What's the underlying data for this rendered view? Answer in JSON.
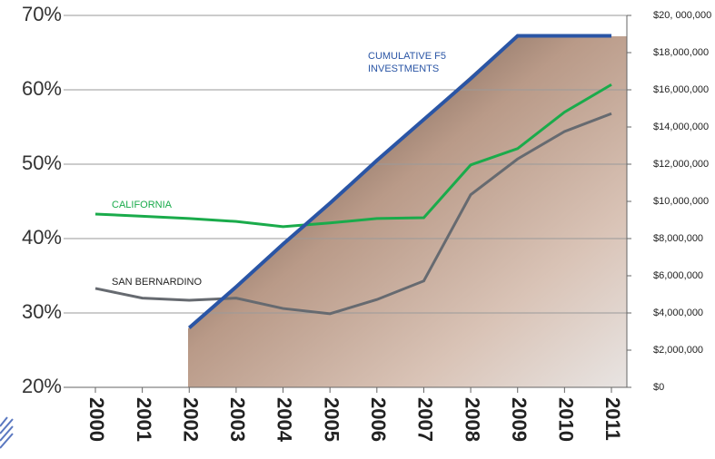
{
  "chart_data": {
    "type": "line",
    "categories": [
      "2000",
      "2001",
      "2002",
      "2003",
      "2004",
      "2005",
      "2006",
      "2007",
      "2008",
      "2009",
      "2010",
      "2011"
    ],
    "series": [
      {
        "name": "CALIFORNIA",
        "color": "#1aab4b",
        "values": [
          43.3,
          43.0,
          42.7,
          42.3,
          41.6,
          42.1,
          42.7,
          42.8,
          49.9,
          52.1,
          57.0,
          60.7
        ]
      },
      {
        "name": "SAN BERNARDINO",
        "color": "#666a70",
        "values": [
          33.3,
          32.0,
          31.7,
          32.0,
          30.6,
          29.9,
          31.8,
          34.3,
          45.9,
          50.7,
          54.4,
          56.8
        ]
      },
      {
        "name": "CUMULATIVE F5 INVESTMENTS",
        "color": "#2a55a5",
        "axis": "y2",
        "values": [
          null,
          null,
          3200000,
          5400000,
          7700000,
          9900000,
          12200000,
          14400000,
          16600000,
          18900000,
          18900000,
          18900000
        ]
      }
    ],
    "ylim": [
      20,
      70
    ],
    "yticks": [
      {
        "value": 20,
        "label": "20%"
      },
      {
        "value": 30,
        "label": "30%"
      },
      {
        "value": 40,
        "label": "40%"
      },
      {
        "value": 50,
        "label": "50%"
      },
      {
        "value": 60,
        "label": "60%"
      },
      {
        "value": 70,
        "label": "70%"
      }
    ],
    "y2lim": [
      0,
      20000000
    ],
    "y2ticks": [
      {
        "value": 0,
        "label": "$0"
      },
      {
        "value": 2000000,
        "label": "$2,000,000"
      },
      {
        "value": 4000000,
        "label": "$4,000,000"
      },
      {
        "value": 6000000,
        "label": "$6,000,000"
      },
      {
        "value": 8000000,
        "label": "$8,000,000"
      },
      {
        "value": 10000000,
        "label": "$10,000,000"
      },
      {
        "value": 12000000,
        "label": "$12,000,000"
      },
      {
        "value": 14000000,
        "label": "$14,000,000"
      },
      {
        "value": 16000000,
        "label": "$16,000,000"
      },
      {
        "value": 18000000,
        "label": "$18,000,000"
      },
      {
        "value": 20000000,
        "label": "$20, 000,000"
      }
    ],
    "grid": true
  }
}
